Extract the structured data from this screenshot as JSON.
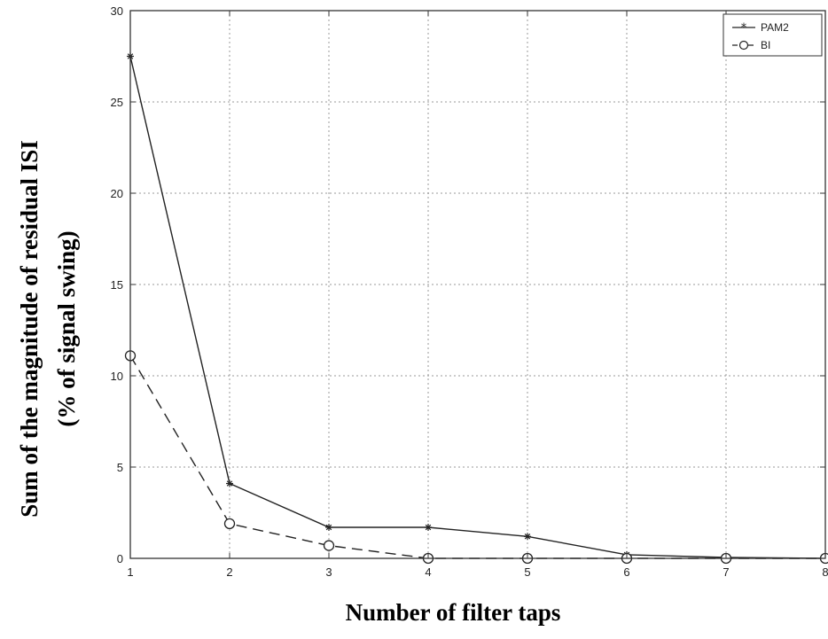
{
  "chart_data": {
    "type": "line",
    "xlabel": "Number of filter taps",
    "ylabel_line1": "Sum of the magnitude of residual ISI",
    "ylabel_line2": "(% of signal swing)",
    "xlim": [
      1,
      8
    ],
    "ylim": [
      0,
      30
    ],
    "xticks": [
      "1",
      "2",
      "3",
      "4",
      "5",
      "6",
      "7",
      "8"
    ],
    "yticks": [
      "0",
      "5",
      "10",
      "15",
      "20",
      "25",
      "30"
    ],
    "grid": true,
    "legend_position": "top-right",
    "series": [
      {
        "name": "PAM2",
        "marker": "star",
        "line_style": "solid",
        "x": [
          1,
          2,
          3,
          4,
          5,
          6,
          7,
          8
        ],
        "values": [
          27.5,
          4.1,
          1.7,
          1.7,
          1.2,
          0.2,
          0.05,
          0.0
        ]
      },
      {
        "name": "BI",
        "marker": "circle",
        "line_style": "dashed",
        "x": [
          1,
          2,
          3,
          4,
          5,
          6,
          7,
          8
        ],
        "values": [
          11.1,
          1.9,
          0.7,
          0.0,
          0.0,
          0.0,
          0.0,
          0.0
        ]
      }
    ]
  }
}
